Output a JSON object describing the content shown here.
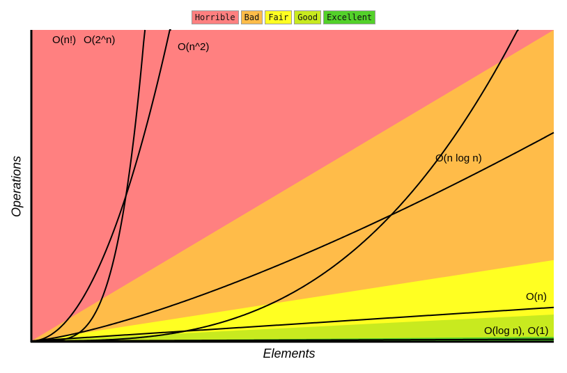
{
  "chart_data": {
    "type": "area",
    "xlabel": "Elements",
    "ylabel": "Operations",
    "legend_position": "top-center",
    "legend": [
      {
        "label": "Horrible",
        "color": "#ff8080"
      },
      {
        "label": "Bad",
        "color": "#ffbc49"
      },
      {
        "label": "Fair",
        "color": "#ffff22"
      },
      {
        "label": "Good",
        "color": "#c8ea1f"
      },
      {
        "label": "Excellent",
        "color": "#53d12a"
      }
    ],
    "regions": [
      {
        "label": "Horrible",
        "color": "#ff8080",
        "upper_slope": null
      },
      {
        "label": "Bad",
        "color": "#ffbc49",
        "upper_slope": 1.0
      },
      {
        "label": "Fair",
        "color": "#ffff22",
        "upper_slope": 0.26
      },
      {
        "label": "Good",
        "color": "#c8ea1f",
        "upper_slope": 0.085
      },
      {
        "label": "Excellent",
        "color": "#53d12a",
        "upper_slope": 0.013
      }
    ],
    "curves": [
      {
        "label": "O(n!)",
        "kind": "factorial"
      },
      {
        "label": "O(2^n)",
        "kind": "exponential"
      },
      {
        "label": "O(n^2)",
        "kind": "quadratic"
      },
      {
        "label": "O(n log n)",
        "kind": "nlogn"
      },
      {
        "label": "O(n)",
        "kind": "linear"
      },
      {
        "label": "O(log n), O(1)",
        "kind": "constant"
      }
    ],
    "grid": false
  }
}
